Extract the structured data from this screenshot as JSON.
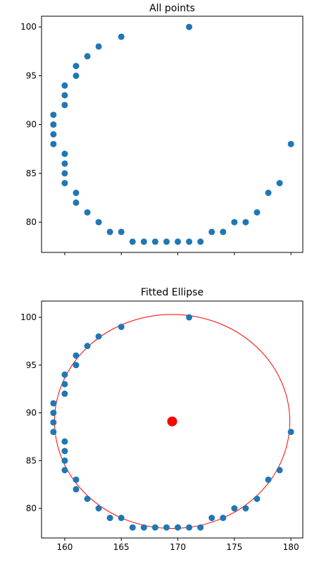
{
  "chart_data": [
    {
      "type": "scatter",
      "title": "All points",
      "xlabel": "",
      "ylabel": "",
      "xlim": [
        157.95,
        181.05
      ],
      "ylim": [
        76.9,
        101.1
      ],
      "x_ticks": [
        160,
        165,
        170,
        175,
        180
      ],
      "y_ticks": [
        80,
        85,
        90,
        95,
        100
      ],
      "show_x_tick_labels": false,
      "grid": false,
      "point_color": "#1f77b4",
      "points": [
        [
          159,
          88
        ],
        [
          159,
          89
        ],
        [
          159,
          90
        ],
        [
          159,
          91
        ],
        [
          160,
          84
        ],
        [
          160,
          85
        ],
        [
          160,
          86
        ],
        [
          160,
          87
        ],
        [
          160,
          92
        ],
        [
          160,
          93
        ],
        [
          160,
          94
        ],
        [
          161,
          82
        ],
        [
          161,
          83
        ],
        [
          161,
          95
        ],
        [
          161,
          96
        ],
        [
          162,
          81
        ],
        [
          162,
          97
        ],
        [
          163,
          80
        ],
        [
          163,
          98
        ],
        [
          164,
          79
        ],
        [
          165,
          79
        ],
        [
          165,
          99
        ],
        [
          166,
          78
        ],
        [
          167,
          78
        ],
        [
          168,
          78
        ],
        [
          169,
          78
        ],
        [
          170,
          78
        ],
        [
          171,
          78
        ],
        [
          172,
          78
        ],
        [
          171,
          100
        ],
        [
          173,
          79
        ],
        [
          174,
          79
        ],
        [
          175,
          80
        ],
        [
          176,
          80
        ],
        [
          177,
          81
        ],
        [
          178,
          83
        ],
        [
          179,
          84
        ],
        [
          180,
          88
        ]
      ]
    },
    {
      "type": "scatter",
      "title": "Fitted Ellipse",
      "xlabel": "",
      "ylabel": "",
      "xlim": [
        157.95,
        181.05
      ],
      "ylim": [
        76.9,
        101.7
      ],
      "x_ticks": [
        160,
        165,
        170,
        175,
        180
      ],
      "y_ticks": [
        80,
        85,
        90,
        95,
        100
      ],
      "show_x_tick_labels": true,
      "grid": false,
      "point_color": "#1f77b4",
      "points": [
        [
          159,
          88
        ],
        [
          159,
          89
        ],
        [
          159,
          90
        ],
        [
          159,
          91
        ],
        [
          160,
          84
        ],
        [
          160,
          85
        ],
        [
          160,
          86
        ],
        [
          160,
          87
        ],
        [
          160,
          92
        ],
        [
          160,
          93
        ],
        [
          160,
          94
        ],
        [
          161,
          82
        ],
        [
          161,
          83
        ],
        [
          161,
          95
        ],
        [
          161,
          96
        ],
        [
          162,
          81
        ],
        [
          162,
          97
        ],
        [
          163,
          80
        ],
        [
          163,
          98
        ],
        [
          164,
          79
        ],
        [
          165,
          79
        ],
        [
          165,
          99
        ],
        [
          166,
          78
        ],
        [
          167,
          78
        ],
        [
          168,
          78
        ],
        [
          169,
          78
        ],
        [
          170,
          78
        ],
        [
          171,
          78
        ],
        [
          172,
          78
        ],
        [
          171,
          100
        ],
        [
          173,
          79
        ],
        [
          174,
          79
        ],
        [
          175,
          80
        ],
        [
          176,
          80
        ],
        [
          177,
          81
        ],
        [
          178,
          83
        ],
        [
          179,
          84
        ],
        [
          180,
          88
        ]
      ],
      "ellipse": {
        "center": [
          169.5,
          89.1
        ],
        "semi_axis_x": 10.4,
        "semi_axis_y": 11.2,
        "angle_deg": 0,
        "color": "#ff0000"
      },
      "center_marker": {
        "x": 169.5,
        "y": 89.1,
        "color": "#ff0000"
      }
    }
  ]
}
